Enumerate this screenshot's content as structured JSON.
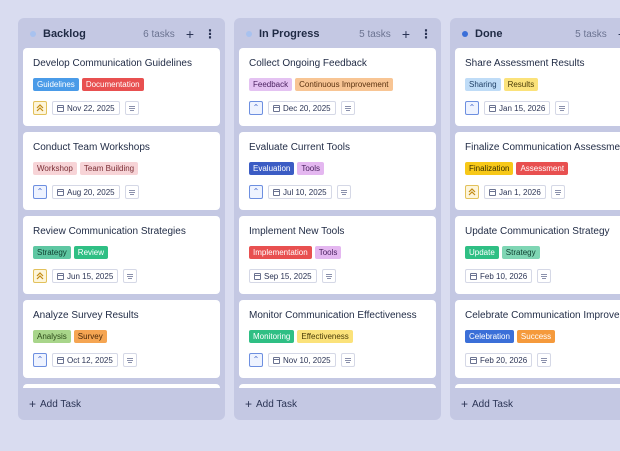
{
  "columns": [
    {
      "title": "Backlog",
      "count": "6 tasks",
      "dot_color": "#a8c2ef",
      "add_task": "Add Task",
      "cards": [
        {
          "title": "Develop Communication Guidelines",
          "tags": [
            {
              "label": "Guidelines",
              "bg": "#4a9be8",
              "fg": "#ffffff"
            },
            {
              "label": "Documentation",
              "bg": "#e85050",
              "fg": "#ffffff"
            }
          ],
          "priority": "high",
          "date": "Nov 22, 2025"
        },
        {
          "title": "Conduct Team Workshops",
          "tags": [
            {
              "label": "Workshop",
              "bg": "#f7d4d7",
              "fg": "#7a2e35"
            },
            {
              "label": "Team Building",
              "bg": "#f7d4d7",
              "fg": "#7a2e35"
            }
          ],
          "priority": "up",
          "date": "Aug 20, 2025"
        },
        {
          "title": "Review Communication Strategies",
          "tags": [
            {
              "label": "Strategy",
              "bg": "#5ec7a2",
              "fg": "#0f3f30"
            },
            {
              "label": "Review",
              "bg": "#2fbf84",
              "fg": "#ffffff"
            }
          ],
          "priority": "high",
          "date": "Jun 15, 2025"
        },
        {
          "title": "Analyze Survey Results",
          "tags": [
            {
              "label": "Analysis",
              "bg": "#a8d58a",
              "fg": "#2b4a18"
            },
            {
              "label": "Survey",
              "bg": "#f5a552",
              "fg": "#4a2808"
            }
          ],
          "priority": "up",
          "date": "Oct 12, 2025"
        }
      ]
    },
    {
      "title": "In Progress",
      "count": "5 tasks",
      "dot_color": "#a8c2ef",
      "add_task": "Add Task",
      "cards": [
        {
          "title": "Collect Ongoing Feedback",
          "tags": [
            {
              "label": "Feedback",
              "bg": "#e4c2f2",
              "fg": "#4a2160"
            },
            {
              "label": "Continuous Improvement",
              "bg": "#f8c594",
              "fg": "#5a3210"
            }
          ],
          "priority": "up",
          "date": "Dec 20, 2025"
        },
        {
          "title": "Evaluate Current Tools",
          "tags": [
            {
              "label": "Evaluation",
              "bg": "#3b5cc4",
              "fg": "#ffffff"
            },
            {
              "label": "Tools",
              "bg": "#e4b7f0",
              "fg": "#4a2160"
            }
          ],
          "priority": "up",
          "date": "Jul 10, 2025"
        },
        {
          "title": "Implement New Tools",
          "tags": [
            {
              "label": "Implementation",
              "bg": "#e85050",
              "fg": "#ffffff"
            },
            {
              "label": "Tools",
              "bg": "#e4b7f0",
              "fg": "#4a2160"
            }
          ],
          "priority": "none",
          "date": "Sep 15, 2025"
        },
        {
          "title": "Monitor Communication Effectiveness",
          "tags": [
            {
              "label": "Monitoring",
              "bg": "#2fbf84",
              "fg": "#ffffff"
            },
            {
              "label": "Effectiveness",
              "bg": "#fbe27a",
              "fg": "#4a3c08"
            }
          ],
          "priority": "up",
          "date": "Nov 10, 2025"
        }
      ]
    },
    {
      "title": "Done",
      "count": "5 tasks",
      "dot_color": "#3b6fd8",
      "add_task": "Add Task",
      "cards": [
        {
          "title": "Share Assessment Results",
          "tags": [
            {
              "label": "Sharing",
              "bg": "#bfdcf7",
              "fg": "#1f3f66"
            },
            {
              "label": "Results",
              "bg": "#fbe27a",
              "fg": "#4a3c08"
            }
          ],
          "priority": "up",
          "date": "Jan 15, 2026"
        },
        {
          "title": "Finalize Communication Assessment",
          "tags": [
            {
              "label": "Finalization",
              "bg": "#f7c818",
              "fg": "#3a2e00"
            },
            {
              "label": "Assessment",
              "bg": "#e85050",
              "fg": "#ffffff"
            }
          ],
          "priority": "high",
          "date": "Jan 1, 2026"
        },
        {
          "title": "Update Communication Strategy",
          "tags": [
            {
              "label": "Update",
              "bg": "#2fbf84",
              "fg": "#ffffff"
            },
            {
              "label": "Strategy",
              "bg": "#7fd6b4",
              "fg": "#0f3f30"
            }
          ],
          "priority": "none",
          "date": "Feb 10, 2026"
        },
        {
          "title": "Celebrate Communication Improvement",
          "tags": [
            {
              "label": "Celebration",
              "bg": "#3b6fd8",
              "fg": "#ffffff"
            },
            {
              "label": "Success",
              "bg": "#f59a3c",
              "fg": "#ffffff"
            }
          ],
          "priority": "none",
          "date": "Feb 20, 2026"
        }
      ]
    }
  ]
}
